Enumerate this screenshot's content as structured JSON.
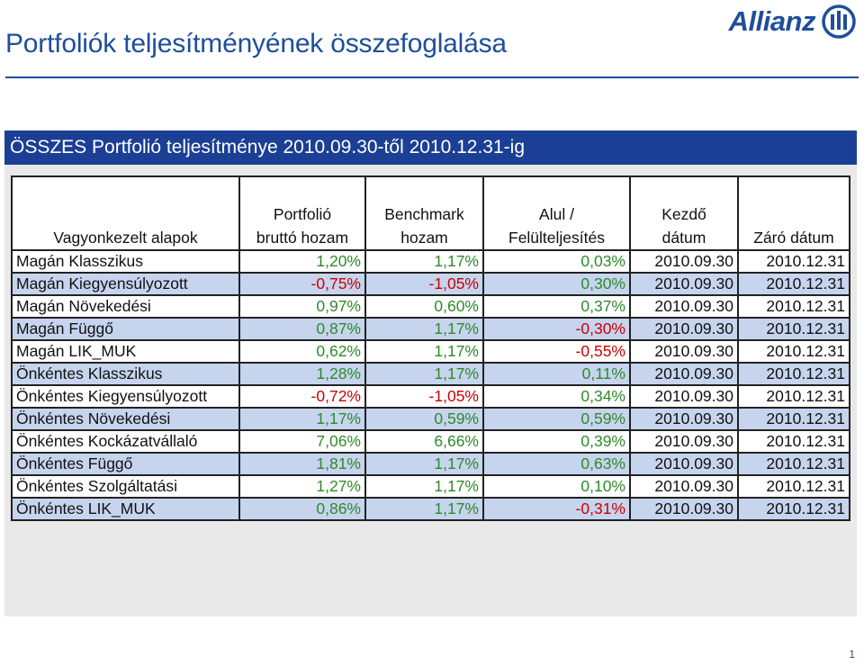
{
  "page": {
    "title": "Portfoliók teljesítményének összefoglalása",
    "page_number": "1"
  },
  "logo": {
    "text": "Allianz",
    "icon": "allianz-eagle-logo-icon"
  },
  "colors": {
    "brand_blue": "#1f4e9a",
    "header_bar": "#1b3f94",
    "row_shade": "#c6d4ee",
    "positive": "#2f8a2a",
    "negative": "#cc0000"
  },
  "panel": {
    "header": "ÖSSZES Portfolió teljesítménye 2010.09.30-től 2010.12.31-ig"
  },
  "table": {
    "columns": [
      {
        "line1": "",
        "line2": "Vagyonkezelt alapok"
      },
      {
        "line1": "Portfolió",
        "line2": "bruttó hozam"
      },
      {
        "line1": "Benchmark",
        "line2": "hozam"
      },
      {
        "line1": "Alul /",
        "line2": "Felülteljesítés"
      },
      {
        "line1": "Kezdő",
        "line2": "dátum"
      },
      {
        "line1": "",
        "line2": "Záró dátum"
      }
    ],
    "rows": [
      {
        "fund": "Magán Klasszikus",
        "portfolio": "1,20%",
        "benchmark": "1,17%",
        "diff": "0,03%",
        "start": "2010.09.30",
        "end": "2010.12.31"
      },
      {
        "fund": "Magán Kiegyensúlyozott",
        "portfolio": "-0,75%",
        "benchmark": "-1,05%",
        "diff": "0,30%",
        "start": "2010.09.30",
        "end": "2010.12.31"
      },
      {
        "fund": "Magán Növekedési",
        "portfolio": "0,97%",
        "benchmark": "0,60%",
        "diff": "0,37%",
        "start": "2010.09.30",
        "end": "2010.12.31"
      },
      {
        "fund": "Magán Függő",
        "portfolio": "0,87%",
        "benchmark": "1,17%",
        "diff": "-0,30%",
        "start": "2010.09.30",
        "end": "2010.12.31"
      },
      {
        "fund": "Magán LIK_MUK",
        "portfolio": "0,62%",
        "benchmark": "1,17%",
        "diff": "-0,55%",
        "start": "2010.09.30",
        "end": "2010.12.31"
      },
      {
        "fund": "Önkéntes Klasszikus",
        "portfolio": "1,28%",
        "benchmark": "1,17%",
        "diff": "0,11%",
        "start": "2010.09.30",
        "end": "2010.12.31"
      },
      {
        "fund": "Önkéntes Kiegyensúlyozott",
        "portfolio": "-0,72%",
        "benchmark": "-1,05%",
        "diff": "0,34%",
        "start": "2010.09.30",
        "end": "2010.12.31"
      },
      {
        "fund": "Önkéntes Növekedési",
        "portfolio": "1,17%",
        "benchmark": "0,59%",
        "diff": "0,59%",
        "start": "2010.09.30",
        "end": "2010.12.31"
      },
      {
        "fund": "Önkéntes Kockázatvállaló",
        "portfolio": "7,06%",
        "benchmark": "6,66%",
        "diff": "0,39%",
        "start": "2010.09.30",
        "end": "2010.12.31"
      },
      {
        "fund": "Önkéntes Függő",
        "portfolio": "1,81%",
        "benchmark": "1,17%",
        "diff": "0,63%",
        "start": "2010.09.30",
        "end": "2010.12.31"
      },
      {
        "fund": "Önkéntes Szolgáltatási",
        "portfolio": "1,27%",
        "benchmark": "1,17%",
        "diff": "0,10%",
        "start": "2010.09.30",
        "end": "2010.12.31"
      },
      {
        "fund": "Önkéntes LIK_MUK",
        "portfolio": "0,86%",
        "benchmark": "1,17%",
        "diff": "-0,31%",
        "start": "2010.09.30",
        "end": "2010.12.31"
      }
    ]
  }
}
